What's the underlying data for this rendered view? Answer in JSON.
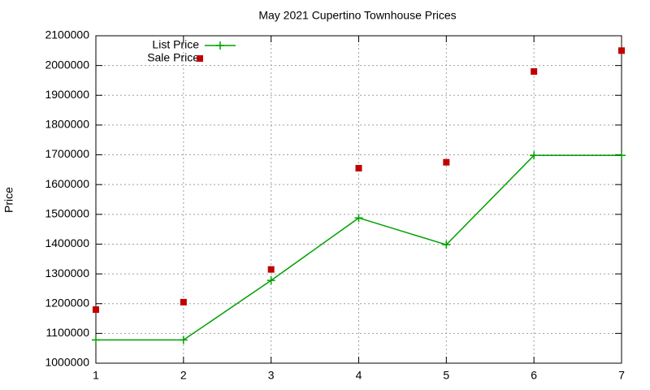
{
  "chart_data": {
    "type": "line",
    "title": "May 2021 Cupertino Townhouse Prices",
    "y_label": "Price",
    "x": [
      1,
      2,
      3,
      4,
      5,
      6,
      7
    ],
    "series": [
      {
        "name": "List Price",
        "color": "#00a000",
        "style": "linespoints",
        "marker": "plus",
        "values": [
          1078000,
          1078000,
          1278000,
          1488000,
          1398000,
          1698000,
          1698000
        ]
      },
      {
        "name": "Sale Price",
        "color": "#c00000",
        "style": "points",
        "marker": "square",
        "values": [
          1180000,
          1205000,
          1315000,
          1655000,
          1675000,
          1980000,
          2050000
        ]
      }
    ],
    "xlim": [
      1,
      7
    ],
    "xticks": [
      1,
      2,
      3,
      4,
      5,
      6,
      7
    ],
    "ylim": [
      1000000,
      2100000
    ],
    "yticks": [
      1000000,
      1100000,
      1200000,
      1300000,
      1400000,
      1500000,
      1600000,
      1700000,
      1800000,
      1900000,
      2000000,
      2100000
    ],
    "grid": true,
    "legend": "top-left"
  }
}
